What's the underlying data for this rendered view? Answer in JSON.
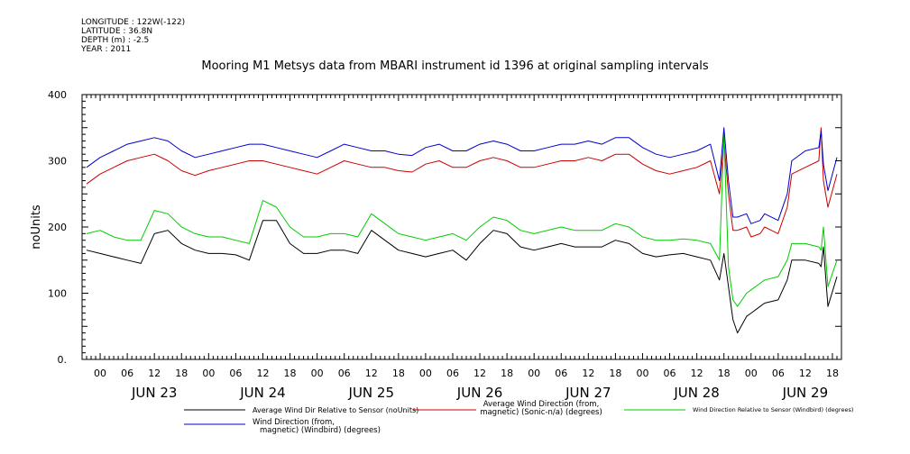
{
  "header": {
    "meta": [
      "LONGITUDE : 122W(-122)",
      "LATITUDE : 36.8N",
      "DEPTH (m) : -2.5",
      "YEAR : 2011"
    ],
    "title": "Mooring M1 Metsys data from MBARI instrument id 1396 at original sampling intervals"
  },
  "chart_data": {
    "type": "line",
    "title": "Mooring M1 Metsys data from MBARI instrument id 1396 at original sampling intervals",
    "ylabel": "noUnits",
    "xlabel": "",
    "ylim": [
      0,
      400
    ],
    "xlim_hours": [
      -4,
      164
    ],
    "y_ticks": [
      "0.",
      "100",
      "200",
      "300",
      "400"
    ],
    "x_tick_labels": [
      "00",
      "06",
      "12",
      "18",
      "00",
      "06",
      "12",
      "18",
      "00",
      "06",
      "12",
      "18",
      "00",
      "06",
      "12",
      "18",
      "00",
      "06",
      "12",
      "18",
      "00",
      "06",
      "12",
      "18",
      "00",
      "06",
      "12",
      "18"
    ],
    "day_labels": [
      "JUN 23",
      "JUN 24",
      "JUN 25",
      "JUN 26",
      "JUN 27",
      "JUN 28",
      "JUN 29"
    ],
    "x_unit": "hours from 2011-06-23 00:00",
    "series": [
      {
        "name": "Average Wind Dir Relative to Sensor (noUnits)",
        "color": "#000000",
        "x": [
          -3,
          0,
          3,
          6,
          9,
          12,
          15,
          18,
          21,
          24,
          27,
          30,
          33,
          36,
          39,
          42,
          45,
          48,
          51,
          54,
          57,
          60,
          63,
          66,
          69,
          72,
          75,
          78,
          81,
          84,
          87,
          90,
          93,
          96,
          99,
          102,
          105,
          108,
          111,
          114,
          117,
          120,
          123,
          126,
          129,
          132,
          135,
          137,
          138,
          139,
          140,
          141,
          143,
          144,
          146,
          147,
          150,
          152,
          153,
          156,
          159,
          159.5,
          160,
          161,
          163
        ],
        "values": [
          165,
          160,
          155,
          150,
          145,
          190,
          195,
          175,
          165,
          160,
          160,
          158,
          150,
          210,
          210,
          175,
          160,
          160,
          165,
          165,
          160,
          195,
          180,
          165,
          160,
          155,
          160,
          165,
          150,
          175,
          195,
          190,
          170,
          165,
          170,
          175,
          170,
          170,
          170,
          180,
          175,
          160,
          155,
          158,
          160,
          155,
          150,
          120,
          160,
          110,
          60,
          40,
          65,
          70,
          80,
          85,
          90,
          120,
          150,
          150,
          145,
          140,
          170,
          80,
          125
        ]
      },
      {
        "name": "Average Wind Direction (from, magnetic) (Sonic-n/a) (degrees)",
        "color": "#cc0000",
        "x": [
          -3,
          0,
          3,
          6,
          9,
          12,
          15,
          18,
          21,
          24,
          27,
          30,
          33,
          36,
          39,
          42,
          45,
          48,
          51,
          54,
          57,
          60,
          63,
          66,
          69,
          72,
          75,
          78,
          81,
          84,
          87,
          90,
          93,
          96,
          99,
          102,
          105,
          108,
          111,
          114,
          117,
          120,
          123,
          126,
          129,
          132,
          135,
          137,
          138,
          139,
          140,
          141,
          143,
          144,
          146,
          147,
          150,
          152,
          153,
          156,
          159,
          159.5,
          160,
          161,
          163
        ],
        "values": [
          265,
          280,
          290,
          300,
          305,
          310,
          300,
          285,
          278,
          285,
          290,
          295,
          300,
          300,
          295,
          290,
          285,
          280,
          290,
          300,
          295,
          290,
          290,
          285,
          283,
          295,
          300,
          290,
          290,
          300,
          305,
          300,
          290,
          290,
          295,
          300,
          300,
          305,
          300,
          310,
          310,
          295,
          285,
          280,
          285,
          290,
          300,
          250,
          330,
          250,
          195,
          195,
          200,
          185,
          190,
          200,
          190,
          230,
          280,
          290,
          300,
          350,
          270,
          230,
          280
        ]
      },
      {
        "name": "Wind Direction Relative to Sensor (Windbird) (degrees)",
        "color": "#00cc00",
        "x": [
          -3,
          0,
          3,
          6,
          9,
          12,
          15,
          18,
          21,
          24,
          27,
          30,
          33,
          36,
          39,
          42,
          45,
          48,
          51,
          54,
          57,
          60,
          63,
          66,
          69,
          72,
          75,
          78,
          81,
          84,
          87,
          90,
          93,
          96,
          99,
          102,
          105,
          108,
          111,
          114,
          117,
          120,
          123,
          126,
          129,
          132,
          135,
          137,
          138,
          139,
          140,
          141,
          143,
          144,
          146,
          147,
          150,
          152,
          153,
          156,
          159,
          159.5,
          160,
          161,
          163
        ],
        "values": [
          190,
          195,
          185,
          180,
          180,
          225,
          220,
          200,
          190,
          185,
          185,
          180,
          175,
          240,
          230,
          200,
          185,
          185,
          190,
          190,
          185,
          220,
          205,
          190,
          185,
          180,
          185,
          190,
          180,
          200,
          215,
          210,
          195,
          190,
          195,
          200,
          195,
          195,
          195,
          205,
          200,
          185,
          180,
          180,
          182,
          180,
          175,
          150,
          340,
          140,
          90,
          80,
          100,
          105,
          115,
          120,
          125,
          150,
          175,
          175,
          170,
          165,
          200,
          110,
          150
        ]
      },
      {
        "name": "Wind Direction (from, magnetic) (Windbird) (degrees)",
        "color": "#0000cc",
        "x": [
          -3,
          0,
          3,
          6,
          9,
          12,
          15,
          18,
          21,
          24,
          27,
          30,
          33,
          36,
          39,
          42,
          45,
          48,
          51,
          54,
          57,
          60,
          63,
          66,
          69,
          72,
          75,
          78,
          81,
          84,
          87,
          90,
          93,
          96,
          99,
          102,
          105,
          108,
          111,
          114,
          117,
          120,
          123,
          126,
          129,
          132,
          135,
          137,
          138,
          139,
          140,
          141,
          143,
          144,
          146,
          147,
          150,
          152,
          153,
          156,
          159,
          159.5,
          160,
          161,
          163
        ],
        "values": [
          290,
          305,
          315,
          325,
          330,
          335,
          330,
          315,
          305,
          310,
          315,
          320,
          325,
          325,
          320,
          315,
          310,
          305,
          315,
          325,
          320,
          315,
          315,
          310,
          308,
          320,
          325,
          315,
          315,
          325,
          330,
          325,
          315,
          315,
          320,
          325,
          325,
          330,
          325,
          335,
          335,
          320,
          310,
          305,
          310,
          315,
          325,
          270,
          350,
          270,
          215,
          215,
          220,
          205,
          210,
          220,
          210,
          250,
          300,
          315,
          320,
          345,
          295,
          255,
          305
        ]
      }
    ],
    "legend_placement": "bottom",
    "grid": false
  }
}
